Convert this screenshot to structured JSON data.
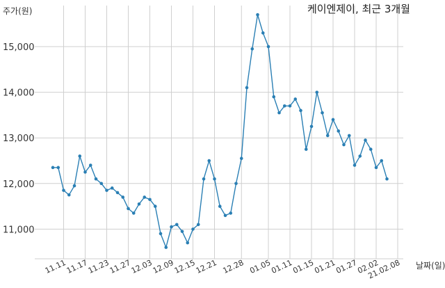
{
  "chart_data": {
    "type": "line",
    "title": "케이엔제이, 최근 3개월",
    "ylabel": "주가(원)",
    "xlabel": "날짜(일)",
    "ylim": [
      10350,
      15900
    ],
    "yticks": [
      11000,
      12000,
      13000,
      14000,
      15000
    ],
    "ytick_labels": [
      "11,000",
      "12,000",
      "13,000",
      "14,000",
      "15,000"
    ],
    "xtick_labels": [
      "11.11",
      "11.17",
      "11.23",
      "11.27",
      "12.03",
      "12.09",
      "12.15",
      "12.21",
      "12.28",
      "01.05",
      "01.11",
      "01.15",
      "01.21",
      "01.27",
      "02.02",
      "21.02.08"
    ],
    "xtick_indices": [
      2,
      6,
      10,
      14,
      18,
      22,
      26,
      30,
      35,
      40,
      44,
      48,
      52,
      56,
      60,
      64
    ],
    "grid": "vertical and horizontal",
    "line_color": "#2a7fb4",
    "series": [
      {
        "values": [
          12350,
          12350,
          11850,
          11750,
          11950,
          12600,
          12250,
          12400,
          12100,
          12000,
          11850,
          11900,
          11800,
          11700,
          11450,
          11350,
          11550,
          11700,
          11650,
          11500,
          10900,
          10600,
          11050,
          11100,
          10950,
          10700,
          11000,
          11100,
          12100,
          12500,
          12100,
          11500,
          11300,
          11350,
          12000,
          12550,
          14100,
          14950,
          15700,
          15300,
          15000,
          13900,
          13550,
          13700,
          13700,
          13850,
          13600,
          12750,
          13250,
          14000,
          13550,
          13050,
          13400,
          13150,
          12850,
          13050,
          12400,
          12600,
          12950,
          12750,
          12350,
          12500,
          12100
        ]
      }
    ]
  }
}
